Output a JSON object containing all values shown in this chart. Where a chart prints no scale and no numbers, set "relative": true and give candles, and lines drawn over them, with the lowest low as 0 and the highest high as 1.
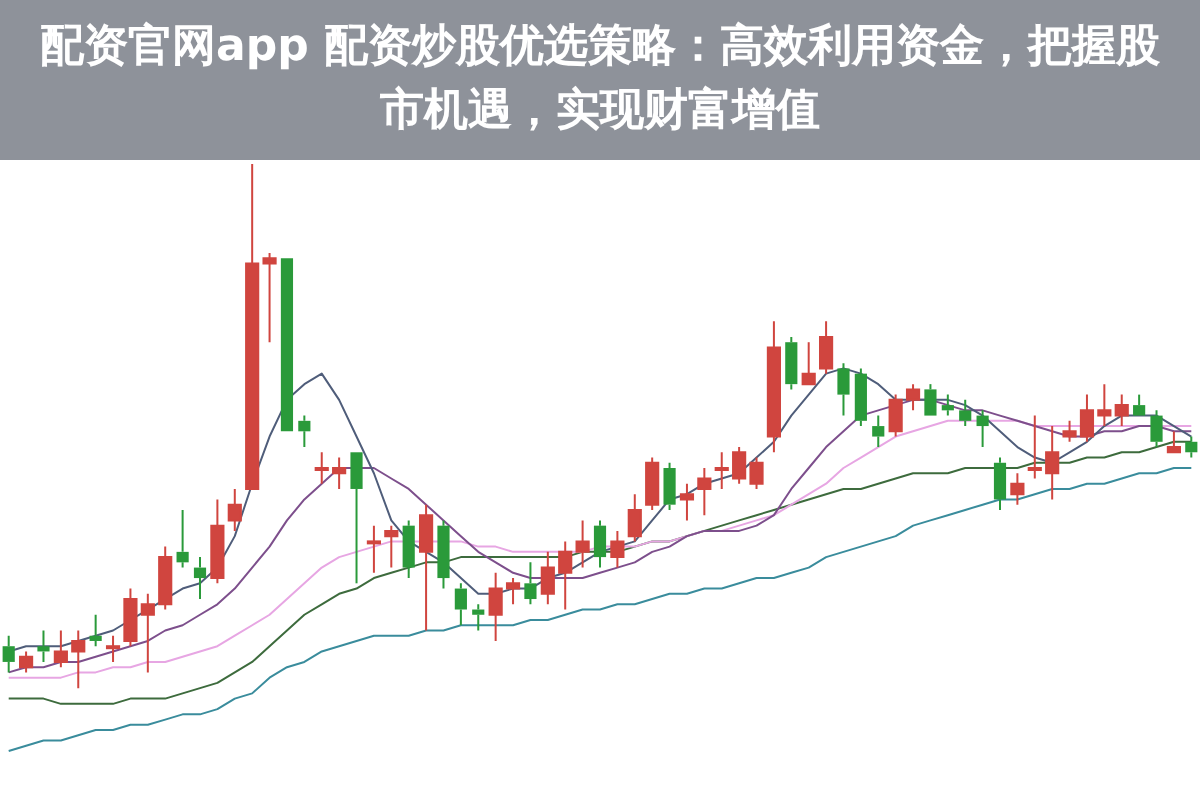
{
  "chart_data": {
    "type": "candlestick",
    "title": "配资官网app 配资炒股优选策略：高效利用资金，把握股市机遇，实现财富增值",
    "relative": true,
    "categories": [
      null,
      null,
      null,
      null,
      null,
      null,
      null,
      null,
      null,
      null,
      null,
      null,
      null,
      null,
      null,
      null,
      null,
      null,
      null,
      null,
      null,
      null,
      null,
      null,
      null,
      null,
      null,
      null,
      null,
      null,
      null,
      null,
      null,
      null,
      null,
      null,
      null,
      null,
      null,
      null,
      null,
      null,
      null,
      null,
      null,
      null,
      null,
      null,
      null,
      null,
      null,
      null,
      null,
      null,
      null,
      null,
      null,
      null,
      null,
      null,
      null,
      null,
      null,
      null,
      null,
      null,
      null,
      null,
      null
    ],
    "ohlc": [
      [
        0.08,
        0.1,
        0.03,
        0.05
      ],
      [
        0.04,
        0.07,
        0.03,
        0.06
      ],
      [
        0.08,
        0.11,
        0.05,
        0.07
      ],
      [
        0.05,
        0.11,
        0.04,
        0.07
      ],
      [
        0.07,
        0.11,
        0,
        0.09
      ],
      [
        0.1,
        0.14,
        0.08,
        0.09
      ],
      [
        0.08,
        0.1,
        0.05,
        0.08
      ],
      [
        0.09,
        0.19,
        0.08,
        0.17
      ],
      [
        0.14,
        0.18,
        0.03,
        0.16
      ],
      [
        0.16,
        0.27,
        0.15,
        0.25
      ],
      [
        0.26,
        0.34,
        0.23,
        0.24
      ],
      [
        0.23,
        0.25,
        0.17,
        0.21
      ],
      [
        0.21,
        0.36,
        0.2,
        0.31
      ],
      [
        0.32,
        0.38,
        0.3,
        0.35
      ],
      [
        0.38,
        1,
        0.38,
        0.81
      ],
      [
        0.81,
        0.83,
        0.66,
        0.82
      ],
      [
        0.82,
        0.82,
        0.49,
        0.49
      ],
      [
        0.51,
        0.52,
        0.46,
        0.49
      ],
      [
        0.42,
        0.45,
        0.39,
        0.42
      ],
      [
        0.41,
        0.44,
        0.38,
        0.42
      ],
      [
        0.45,
        0.45,
        0.2,
        0.38
      ],
      [
        0.28,
        0.31,
        0.22,
        0.28
      ],
      [
        0.29,
        0.31,
        0.23,
        0.3
      ],
      [
        0.31,
        0.32,
        0.21,
        0.23
      ],
      [
        0.26,
        0.35,
        0.11,
        0.33
      ],
      [
        0.31,
        0.32,
        0.19,
        0.21
      ],
      [
        0.19,
        0.2,
        0.12,
        0.15
      ],
      [
        0.15,
        0.16,
        0.11,
        0.14
      ],
      [
        0.14,
        0.22,
        0.09,
        0.19
      ],
      [
        0.19,
        0.21,
        0.16,
        0.2
      ],
      [
        0.2,
        0.24,
        0.16,
        0.17
      ],
      [
        0.18,
        0.26,
        0.16,
        0.23
      ],
      [
        0.22,
        0.28,
        0.15,
        0.26
      ],
      [
        0.26,
        0.32,
        0.23,
        0.28
      ],
      [
        0.31,
        0.32,
        0.23,
        0.25
      ],
      [
        0.25,
        0.3,
        0.23,
        0.28
      ],
      [
        0.29,
        0.37,
        0.28,
        0.34
      ],
      [
        0.35,
        0.44,
        0.34,
        0.43
      ],
      [
        0.42,
        0.43,
        0.34,
        0.35
      ],
      [
        0.36,
        0.39,
        0.32,
        0.37
      ],
      [
        0.38,
        0.42,
        0.33,
        0.4
      ],
      [
        0.42,
        0.45,
        0.38,
        0.42
      ],
      [
        0.4,
        0.46,
        0.39,
        0.45
      ],
      [
        0.39,
        0.44,
        0.38,
        0.43
      ],
      [
        0.48,
        0.7,
        0.45,
        0.65
      ],
      [
        0.66,
        0.67,
        0.57,
        0.58
      ],
      [
        0.58,
        0.66,
        0.58,
        0.6
      ],
      [
        0.61,
        0.7,
        0.6,
        0.67
      ],
      [
        0.61,
        0.62,
        0.52,
        0.56
      ],
      [
        0.6,
        0.61,
        0.5,
        0.51
      ],
      [
        0.5,
        0.52,
        0.46,
        0.48
      ],
      [
        0.49,
        0.56,
        0.48,
        0.55
      ],
      [
        0.55,
        0.58,
        0.53,
        0.57
      ],
      [
        0.57,
        0.58,
        0.52,
        0.52
      ],
      [
        0.54,
        0.56,
        0.52,
        0.53
      ],
      [
        0.53,
        0.55,
        0.5,
        0.51
      ],
      [
        0.52,
        0.53,
        0.46,
        0.5
      ],
      [
        0.43,
        0.44,
        0.34,
        0.36
      ],
      [
        0.37,
        0.41,
        0.35,
        0.39
      ],
      [
        0.42,
        0.52,
        0.4,
        0.42
      ],
      [
        0.41,
        0.5,
        0.36,
        0.45
      ],
      [
        0.48,
        0.51,
        0.47,
        0.49
      ],
      [
        0.48,
        0.56,
        0.47,
        0.53
      ],
      [
        0.52,
        0.58,
        0.5,
        0.53
      ],
      [
        0.52,
        0.56,
        0.5,
        0.54
      ],
      [
        0.54,
        0.56,
        0.52,
        0.52
      ],
      [
        0.52,
        0.53,
        0.46,
        0.47
      ],
      [
        0.45,
        0.49,
        0.45,
        0.46
      ],
      [
        0.47,
        0.48,
        0.44,
        0.45
      ]
    ],
    "colors": [
      "#2a9a3a",
      "#d0453f",
      "#2a9a3a",
      "#d0453f",
      "#d0453f",
      "#2a9a3a",
      "#d0453f",
      "#d0453f",
      "#d0453f",
      "#d0453f",
      "#2a9a3a",
      "#2a9a3a",
      "#d0453f",
      "#d0453f",
      "#d0453f",
      "#d0453f",
      "#2a9a3a",
      "#2a9a3a",
      "#d0453f",
      "#d0453f",
      "#2a9a3a",
      "#d0453f",
      "#d0453f",
      "#2a9a3a",
      "#d0453f",
      "#2a9a3a",
      "#2a9a3a",
      "#2a9a3a",
      "#d0453f",
      "#d0453f",
      "#2a9a3a",
      "#d0453f",
      "#d0453f",
      "#d0453f",
      "#2a9a3a",
      "#d0453f",
      "#d0453f",
      "#d0453f",
      "#2a9a3a",
      "#d0453f",
      "#d0453f",
      "#d0453f",
      "#d0453f",
      "#d0453f",
      "#d0453f",
      "#2a9a3a",
      "#d0453f",
      "#d0453f",
      "#2a9a3a",
      "#2a9a3a",
      "#2a9a3a",
      "#d0453f",
      "#d0453f",
      "#2a9a3a",
      "#2a9a3a",
      "#2a9a3a",
      "#2a9a3a",
      "#2a9a3a",
      "#d0453f",
      "#d0453f",
      "#d0453f",
      "#d0453f",
      "#d0453f",
      "#d0453f",
      "#d0453f",
      "#2a9a3a",
      "#2a9a3a",
      "#d0453f",
      "#2a9a3a"
    ],
    "series": [
      {
        "type": "line",
        "color": "#4f5d7a",
        "values": [
          0.07,
          0.08,
          0.08,
          0.08,
          0.09,
          0.1,
          0.11,
          0.13,
          0.15,
          0.17,
          0.19,
          0.2,
          0.23,
          0.29,
          0.39,
          0.48,
          0.55,
          0.58,
          0.6,
          0.55,
          0.48,
          0.41,
          0.32,
          0.28,
          0.26,
          0.24,
          0.21,
          0.18,
          0.18,
          0.19,
          0.19,
          0.21,
          0.22,
          0.24,
          0.26,
          0.27,
          0.28,
          0.32,
          0.36,
          0.37,
          0.39,
          0.4,
          0.41,
          0.44,
          0.47,
          0.52,
          0.56,
          0.6,
          0.61,
          0.6,
          0.58,
          0.55,
          0.55,
          0.55,
          0.55,
          0.54,
          0.52,
          0.49,
          0.46,
          0.44,
          0.43,
          0.45,
          0.47,
          0.5,
          0.52,
          0.52,
          0.52,
          0.5,
          0.48
        ]
      },
      {
        "type": "line",
        "color": "#7d4f8c",
        "values": [
          0.03,
          0.04,
          0.04,
          0.05,
          0.05,
          0.06,
          0.07,
          0.08,
          0.09,
          0.11,
          0.12,
          0.14,
          0.16,
          0.19,
          0.23,
          0.27,
          0.32,
          0.36,
          0.39,
          0.42,
          0.42,
          0.42,
          0.4,
          0.38,
          0.35,
          0.32,
          0.29,
          0.26,
          0.24,
          0.22,
          0.21,
          0.21,
          0.21,
          0.21,
          0.22,
          0.23,
          0.24,
          0.26,
          0.27,
          0.29,
          0.3,
          0.3,
          0.3,
          0.31,
          0.33,
          0.38,
          0.42,
          0.46,
          0.49,
          0.52,
          0.53,
          0.54,
          0.55,
          0.55,
          0.54,
          0.53,
          0.53,
          0.52,
          0.51,
          0.5,
          0.49,
          0.48,
          0.48,
          0.49,
          0.49,
          0.5,
          0.5,
          0.49,
          0.49
        ]
      },
      {
        "type": "line",
        "color": "#e7a6e3",
        "values": [
          0.02,
          0.02,
          0.02,
          0.02,
          0.03,
          0.03,
          0.04,
          0.04,
          0.05,
          0.05,
          0.06,
          0.07,
          0.08,
          0.1,
          0.12,
          0.14,
          0.17,
          0.2,
          0.23,
          0.25,
          0.26,
          0.27,
          0.28,
          0.28,
          0.28,
          0.28,
          0.28,
          0.27,
          0.27,
          0.26,
          0.26,
          0.26,
          0.26,
          0.26,
          0.27,
          0.27,
          0.27,
          0.28,
          0.28,
          0.29,
          0.3,
          0.3,
          0.31,
          0.32,
          0.33,
          0.35,
          0.37,
          0.39,
          0.42,
          0.44,
          0.46,
          0.48,
          0.49,
          0.5,
          0.51,
          0.51,
          0.51,
          0.51,
          0.51,
          0.5,
          0.5,
          0.5,
          0.5,
          0.5,
          0.5,
          0.5,
          0.5,
          0.5,
          0.5
        ]
      },
      {
        "type": "line",
        "color": "#3d6b3d",
        "values": [
          -0.02,
          -0.02,
          -0.02,
          -0.03,
          -0.03,
          -0.03,
          -0.03,
          -0.02,
          -0.02,
          -0.02,
          -0.01,
          0,
          0.01,
          0.03,
          0.05,
          0.08,
          0.11,
          0.14,
          0.16,
          0.18,
          0.19,
          0.21,
          0.22,
          0.23,
          0.24,
          0.24,
          0.25,
          0.25,
          0.25,
          0.25,
          0.25,
          0.25,
          0.25,
          0.26,
          0.26,
          0.26,
          0.27,
          0.28,
          0.28,
          0.29,
          0.3,
          0.31,
          0.32,
          0.33,
          0.34,
          0.35,
          0.36,
          0.37,
          0.38,
          0.38,
          0.39,
          0.4,
          0.41,
          0.41,
          0.41,
          0.42,
          0.42,
          0.42,
          0.42,
          0.43,
          0.43,
          0.43,
          0.44,
          0.44,
          0.45,
          0.45,
          0.46,
          0.47,
          0.47
        ]
      },
      {
        "type": "line",
        "color": "#3a8c9c",
        "values": [
          -0.12,
          -0.11,
          -0.1,
          -0.1,
          -0.09,
          -0.08,
          -0.08,
          -0.07,
          -0.07,
          -0.06,
          -0.05,
          -0.05,
          -0.04,
          -0.02,
          -0.01,
          0.02,
          0.04,
          0.05,
          0.07,
          0.08,
          0.09,
          0.1,
          0.1,
          0.1,
          0.11,
          0.11,
          0.12,
          0.12,
          0.12,
          0.12,
          0.13,
          0.13,
          0.14,
          0.15,
          0.15,
          0.16,
          0.16,
          0.17,
          0.18,
          0.18,
          0.19,
          0.19,
          0.2,
          0.21,
          0.21,
          0.22,
          0.23,
          0.25,
          0.26,
          0.27,
          0.28,
          0.29,
          0.31,
          0.32,
          0.33,
          0.34,
          0.35,
          0.36,
          0.36,
          0.37,
          0.38,
          0.38,
          0.39,
          0.39,
          0.4,
          0.41,
          0.41,
          0.42,
          0.42
        ]
      }
    ]
  }
}
